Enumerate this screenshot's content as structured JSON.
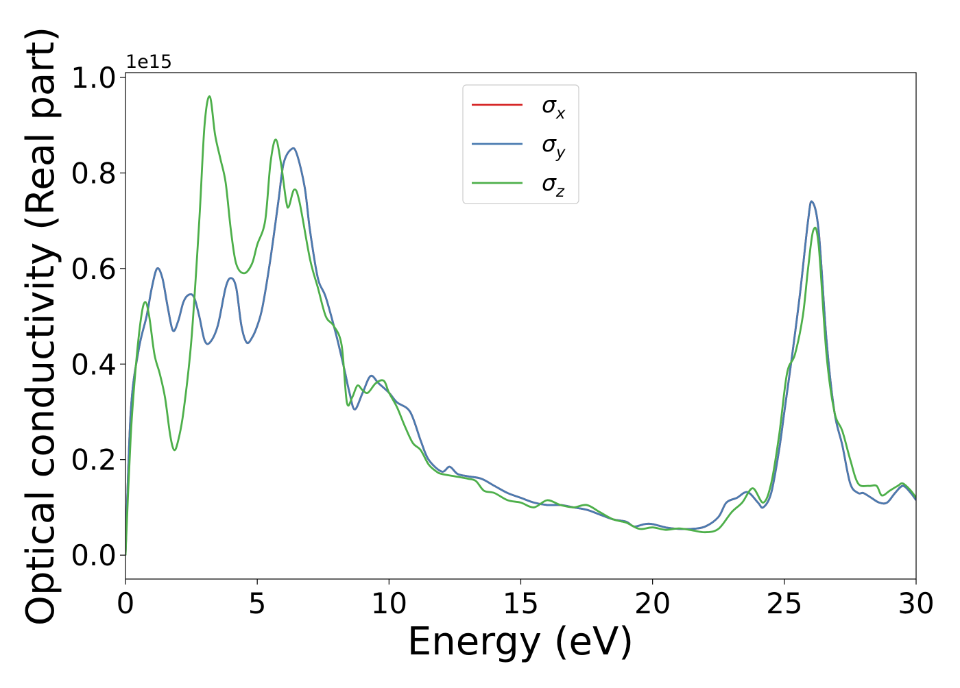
{
  "chart_data": {
    "type": "line",
    "xlabel": "Energy (eV)",
    "ylabel": "Optical conductivity (Real part)",
    "y_offset_label": "1e15",
    "xlim": [
      0,
      30
    ],
    "ylim": [
      -0.05,
      1.01
    ],
    "x_ticks": [
      0,
      5,
      10,
      15,
      20,
      25,
      30
    ],
    "x_tick_labels": [
      "0",
      "5",
      "10",
      "15",
      "20",
      "25",
      "30"
    ],
    "y_ticks": [
      0.0,
      0.2,
      0.4,
      0.6,
      0.8,
      1.0
    ],
    "y_tick_labels": [
      "0.0",
      "0.2",
      "0.4",
      "0.6",
      "0.8",
      "1.0"
    ],
    "grid": false,
    "legend_position": "top-center",
    "series": [
      {
        "name": "σx",
        "base": "σ",
        "sub": "x",
        "color": "#d62728",
        "points": [
          [
            0,
            0
          ],
          [
            0.2,
            0.3
          ],
          [
            0.5,
            0.43
          ],
          [
            0.8,
            0.5
          ],
          [
            1.0,
            0.56
          ],
          [
            1.2,
            0.6
          ],
          [
            1.4,
            0.58
          ],
          [
            1.6,
            0.52
          ],
          [
            1.8,
            0.47
          ],
          [
            2.0,
            0.49
          ],
          [
            2.2,
            0.53
          ],
          [
            2.4,
            0.545
          ],
          [
            2.6,
            0.54
          ],
          [
            2.8,
            0.5
          ],
          [
            3.0,
            0.45
          ],
          [
            3.2,
            0.445
          ],
          [
            3.5,
            0.48
          ],
          [
            3.8,
            0.56
          ],
          [
            4.0,
            0.58
          ],
          [
            4.2,
            0.56
          ],
          [
            4.4,
            0.48
          ],
          [
            4.6,
            0.445
          ],
          [
            4.8,
            0.455
          ],
          [
            5.0,
            0.48
          ],
          [
            5.2,
            0.52
          ],
          [
            5.5,
            0.62
          ],
          [
            5.8,
            0.74
          ],
          [
            6.0,
            0.82
          ],
          [
            6.3,
            0.85
          ],
          [
            6.5,
            0.84
          ],
          [
            6.8,
            0.77
          ],
          [
            7.0,
            0.68
          ],
          [
            7.3,
            0.58
          ],
          [
            7.6,
            0.54
          ],
          [
            8.0,
            0.46
          ],
          [
            8.3,
            0.39
          ],
          [
            8.5,
            0.34
          ],
          [
            8.7,
            0.305
          ],
          [
            9.0,
            0.34
          ],
          [
            9.3,
            0.375
          ],
          [
            9.6,
            0.36
          ],
          [
            10.0,
            0.34
          ],
          [
            10.3,
            0.32
          ],
          [
            10.8,
            0.3
          ],
          [
            11.2,
            0.24
          ],
          [
            11.5,
            0.2
          ],
          [
            12.0,
            0.175
          ],
          [
            12.3,
            0.185
          ],
          [
            12.6,
            0.17
          ],
          [
            13.0,
            0.165
          ],
          [
            13.5,
            0.16
          ],
          [
            14.0,
            0.145
          ],
          [
            14.5,
            0.13
          ],
          [
            15.0,
            0.12
          ],
          [
            15.5,
            0.11
          ],
          [
            16.0,
            0.105
          ],
          [
            16.5,
            0.105
          ],
          [
            17.0,
            0.1
          ],
          [
            17.5,
            0.095
          ],
          [
            18.0,
            0.085
          ],
          [
            18.5,
            0.075
          ],
          [
            19.0,
            0.07
          ],
          [
            19.3,
            0.06
          ],
          [
            19.7,
            0.065
          ],
          [
            20.0,
            0.065
          ],
          [
            20.5,
            0.058
          ],
          [
            21.0,
            0.055
          ],
          [
            21.5,
            0.055
          ],
          [
            22.0,
            0.06
          ],
          [
            22.5,
            0.08
          ],
          [
            22.8,
            0.11
          ],
          [
            23.2,
            0.12
          ],
          [
            23.6,
            0.132
          ],
          [
            24.0,
            0.11
          ],
          [
            24.2,
            0.1
          ],
          [
            24.5,
            0.13
          ],
          [
            24.8,
            0.22
          ],
          [
            25.0,
            0.3
          ],
          [
            25.3,
            0.42
          ],
          [
            25.6,
            0.55
          ],
          [
            25.9,
            0.7
          ],
          [
            26.05,
            0.74
          ],
          [
            26.3,
            0.68
          ],
          [
            26.6,
            0.45
          ],
          [
            26.9,
            0.3
          ],
          [
            27.2,
            0.23
          ],
          [
            27.5,
            0.15
          ],
          [
            27.8,
            0.13
          ],
          [
            28.0,
            0.13
          ],
          [
            28.3,
            0.12
          ],
          [
            28.6,
            0.11
          ],
          [
            28.9,
            0.11
          ],
          [
            29.2,
            0.13
          ],
          [
            29.5,
            0.145
          ],
          [
            29.8,
            0.13
          ],
          [
            30.0,
            0.115
          ]
        ]
      },
      {
        "name": "σy",
        "base": "σ",
        "sub": "y",
        "color": "#4a7bb0",
        "points": [
          [
            0,
            0
          ],
          [
            0.2,
            0.3
          ],
          [
            0.5,
            0.43
          ],
          [
            0.8,
            0.5
          ],
          [
            1.0,
            0.56
          ],
          [
            1.2,
            0.6
          ],
          [
            1.4,
            0.58
          ],
          [
            1.6,
            0.52
          ],
          [
            1.8,
            0.47
          ],
          [
            2.0,
            0.49
          ],
          [
            2.2,
            0.53
          ],
          [
            2.4,
            0.545
          ],
          [
            2.6,
            0.54
          ],
          [
            2.8,
            0.5
          ],
          [
            3.0,
            0.45
          ],
          [
            3.2,
            0.445
          ],
          [
            3.5,
            0.48
          ],
          [
            3.8,
            0.56
          ],
          [
            4.0,
            0.58
          ],
          [
            4.2,
            0.56
          ],
          [
            4.4,
            0.48
          ],
          [
            4.6,
            0.445
          ],
          [
            4.8,
            0.455
          ],
          [
            5.0,
            0.48
          ],
          [
            5.2,
            0.52
          ],
          [
            5.5,
            0.62
          ],
          [
            5.8,
            0.74
          ],
          [
            6.0,
            0.82
          ],
          [
            6.3,
            0.85
          ],
          [
            6.5,
            0.84
          ],
          [
            6.8,
            0.77
          ],
          [
            7.0,
            0.68
          ],
          [
            7.3,
            0.58
          ],
          [
            7.6,
            0.54
          ],
          [
            8.0,
            0.46
          ],
          [
            8.3,
            0.39
          ],
          [
            8.5,
            0.34
          ],
          [
            8.7,
            0.305
          ],
          [
            9.0,
            0.34
          ],
          [
            9.3,
            0.375
          ],
          [
            9.6,
            0.36
          ],
          [
            10.0,
            0.34
          ],
          [
            10.3,
            0.32
          ],
          [
            10.8,
            0.3
          ],
          [
            11.2,
            0.24
          ],
          [
            11.5,
            0.2
          ],
          [
            12.0,
            0.175
          ],
          [
            12.3,
            0.185
          ],
          [
            12.6,
            0.17
          ],
          [
            13.0,
            0.165
          ],
          [
            13.5,
            0.16
          ],
          [
            14.0,
            0.145
          ],
          [
            14.5,
            0.13
          ],
          [
            15.0,
            0.12
          ],
          [
            15.5,
            0.11
          ],
          [
            16.0,
            0.105
          ],
          [
            16.5,
            0.105
          ],
          [
            17.0,
            0.1
          ],
          [
            17.5,
            0.095
          ],
          [
            18.0,
            0.085
          ],
          [
            18.5,
            0.075
          ],
          [
            19.0,
            0.07
          ],
          [
            19.3,
            0.06
          ],
          [
            19.7,
            0.065
          ],
          [
            20.0,
            0.065
          ],
          [
            20.5,
            0.058
          ],
          [
            21.0,
            0.055
          ],
          [
            21.5,
            0.055
          ],
          [
            22.0,
            0.06
          ],
          [
            22.5,
            0.08
          ],
          [
            22.8,
            0.11
          ],
          [
            23.2,
            0.12
          ],
          [
            23.6,
            0.132
          ],
          [
            24.0,
            0.11
          ],
          [
            24.2,
            0.1
          ],
          [
            24.5,
            0.13
          ],
          [
            24.8,
            0.22
          ],
          [
            25.0,
            0.3
          ],
          [
            25.3,
            0.42
          ],
          [
            25.6,
            0.55
          ],
          [
            25.9,
            0.7
          ],
          [
            26.05,
            0.74
          ],
          [
            26.3,
            0.68
          ],
          [
            26.6,
            0.45
          ],
          [
            26.9,
            0.3
          ],
          [
            27.2,
            0.23
          ],
          [
            27.5,
            0.15
          ],
          [
            27.8,
            0.13
          ],
          [
            28.0,
            0.13
          ],
          [
            28.3,
            0.12
          ],
          [
            28.6,
            0.11
          ],
          [
            28.9,
            0.11
          ],
          [
            29.2,
            0.13
          ],
          [
            29.5,
            0.145
          ],
          [
            29.8,
            0.13
          ],
          [
            30.0,
            0.115
          ]
        ]
      },
      {
        "name": "σz",
        "base": "σ",
        "sub": "z",
        "color": "#4daf4a",
        "points": [
          [
            0,
            0
          ],
          [
            0.2,
            0.25
          ],
          [
            0.4,
            0.4
          ],
          [
            0.6,
            0.5
          ],
          [
            0.75,
            0.53
          ],
          [
            0.9,
            0.5
          ],
          [
            1.1,
            0.42
          ],
          [
            1.3,
            0.38
          ],
          [
            1.5,
            0.33
          ],
          [
            1.7,
            0.25
          ],
          [
            1.85,
            0.22
          ],
          [
            2.0,
            0.24
          ],
          [
            2.2,
            0.3
          ],
          [
            2.5,
            0.45
          ],
          [
            2.8,
            0.7
          ],
          [
            3.0,
            0.9
          ],
          [
            3.2,
            0.96
          ],
          [
            3.4,
            0.88
          ],
          [
            3.6,
            0.83
          ],
          [
            3.8,
            0.78
          ],
          [
            4.0,
            0.68
          ],
          [
            4.2,
            0.61
          ],
          [
            4.5,
            0.59
          ],
          [
            4.8,
            0.61
          ],
          [
            5.0,
            0.65
          ],
          [
            5.3,
            0.7
          ],
          [
            5.5,
            0.82
          ],
          [
            5.7,
            0.87
          ],
          [
            5.9,
            0.82
          ],
          [
            6.1,
            0.74
          ],
          [
            6.2,
            0.73
          ],
          [
            6.4,
            0.765
          ],
          [
            6.6,
            0.74
          ],
          [
            7.0,
            0.62
          ],
          [
            7.3,
            0.56
          ],
          [
            7.6,
            0.5
          ],
          [
            7.9,
            0.48
          ],
          [
            8.2,
            0.44
          ],
          [
            8.4,
            0.32
          ],
          [
            8.6,
            0.33
          ],
          [
            8.8,
            0.355
          ],
          [
            9.0,
            0.345
          ],
          [
            9.2,
            0.34
          ],
          [
            9.5,
            0.36
          ],
          [
            9.8,
            0.365
          ],
          [
            10.0,
            0.34
          ],
          [
            10.3,
            0.31
          ],
          [
            10.6,
            0.27
          ],
          [
            10.9,
            0.235
          ],
          [
            11.2,
            0.22
          ],
          [
            11.5,
            0.19
          ],
          [
            11.8,
            0.175
          ],
          [
            12.0,
            0.17
          ],
          [
            12.5,
            0.165
          ],
          [
            13.0,
            0.16
          ],
          [
            13.3,
            0.155
          ],
          [
            13.6,
            0.135
          ],
          [
            14.0,
            0.13
          ],
          [
            14.5,
            0.115
          ],
          [
            15.0,
            0.11
          ],
          [
            15.5,
            0.1
          ],
          [
            16.0,
            0.115
          ],
          [
            16.5,
            0.105
          ],
          [
            17.0,
            0.1
          ],
          [
            17.5,
            0.105
          ],
          [
            18.0,
            0.09
          ],
          [
            18.5,
            0.075
          ],
          [
            19.0,
            0.068
          ],
          [
            19.5,
            0.055
          ],
          [
            20.0,
            0.058
          ],
          [
            20.5,
            0.053
          ],
          [
            21.0,
            0.056
          ],
          [
            21.5,
            0.052
          ],
          [
            22.0,
            0.048
          ],
          [
            22.5,
            0.055
          ],
          [
            23.0,
            0.09
          ],
          [
            23.4,
            0.11
          ],
          [
            23.8,
            0.14
          ],
          [
            24.2,
            0.11
          ],
          [
            24.5,
            0.15
          ],
          [
            24.8,
            0.25
          ],
          [
            25.1,
            0.38
          ],
          [
            25.4,
            0.42
          ],
          [
            25.7,
            0.5
          ],
          [
            25.9,
            0.6
          ],
          [
            26.1,
            0.68
          ],
          [
            26.3,
            0.65
          ],
          [
            26.6,
            0.42
          ],
          [
            26.9,
            0.3
          ],
          [
            27.2,
            0.26
          ],
          [
            27.5,
            0.2
          ],
          [
            27.8,
            0.15
          ],
          [
            28.2,
            0.145
          ],
          [
            28.5,
            0.145
          ],
          [
            28.7,
            0.125
          ],
          [
            29.0,
            0.135
          ],
          [
            29.3,
            0.145
          ],
          [
            29.5,
            0.15
          ],
          [
            29.8,
            0.135
          ],
          [
            30.0,
            0.12
          ]
        ]
      }
    ]
  }
}
